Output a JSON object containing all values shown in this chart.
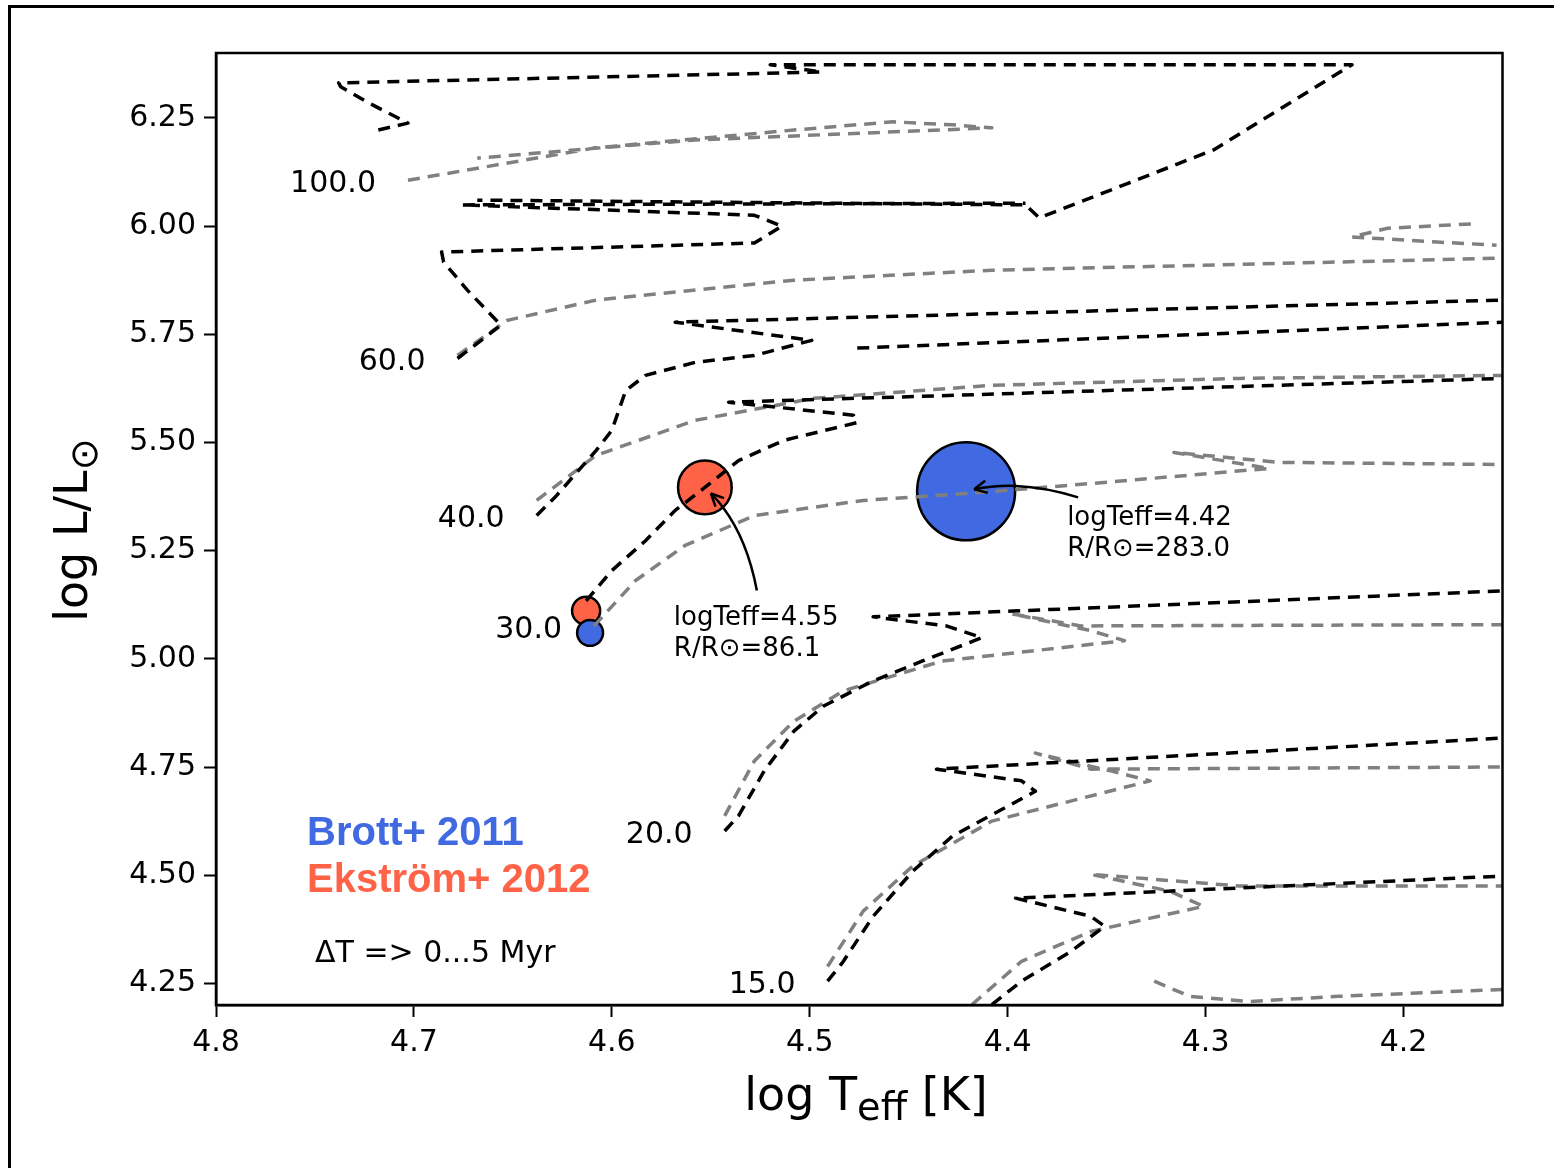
{
  "chart_data": {
    "type": "line",
    "xlabel": "log T$_{eff}$ [K]",
    "ylabel": "log L/L$_{⊙}$",
    "xlim": [
      4.8,
      4.15
    ],
    "xticks": [
      4.8,
      4.7,
      4.6,
      4.5,
      4.4,
      4.3,
      4.2
    ],
    "ylim": [
      4.2,
      6.4
    ],
    "yticks": [
      {
        "value": 4.25,
        "label": "4.25"
      },
      {
        "value": 4.5,
        "label": "4.50"
      },
      {
        "value": 4.75,
        "label": "4.75"
      },
      {
        "value": 5.0,
        "label": "5.00"
      },
      {
        "value": 5.25,
        "label": "5.25"
      },
      {
        "value": 5.5,
        "label": "5.50"
      },
      {
        "value": 5.75,
        "label": "5.75"
      },
      {
        "value": 6.0,
        "label": "6.00"
      },
      {
        "value": 6.25,
        "label": "6.25"
      }
    ],
    "grid": false,
    "legend": "bottom left",
    "line_style": "dashed",
    "series": [
      {
        "color": "#000000",
        "x": [
          4.718,
          4.703,
          4.723,
          4.737,
          4.738,
          4.494,
          4.52,
          4.226,
          4.296,
          4.384,
          4.391,
          4.668
        ],
        "values": [
          6.222,
          6.238,
          6.285,
          6.322,
          6.331,
          6.356,
          6.373,
          6.373,
          6.176,
          6.019,
          6.049,
          6.06
        ]
      },
      {
        "color": "#000000",
        "x": [
          4.678,
          4.656,
          4.673,
          4.685,
          4.686,
          4.528,
          4.514,
          4.528,
          4.676,
          4.391
        ],
        "values": [
          5.694,
          5.771,
          5.852,
          5.917,
          5.94,
          5.961,
          6.0,
          6.025,
          6.049,
          6.053
        ]
      },
      {
        "color": "#000000",
        "x": [
          4.638,
          4.628,
          4.608,
          4.6,
          4.593,
          4.583,
          4.558,
          4.528,
          4.499,
          4.568,
          4.15
        ],
        "values": [
          5.331,
          5.377,
          5.481,
          5.528,
          5.62,
          5.655,
          5.685,
          5.701,
          5.736,
          5.778,
          5.829
        ]
      },
      {
        "color": "#000000",
        "x": [
          4.476,
          4.15
        ],
        "values": [
          5.718,
          5.778
        ]
      },
      {
        "color": "#000000",
        "x": [
          4.613,
          4.6,
          4.583,
          4.568,
          4.553,
          4.536,
          4.513,
          4.476,
          4.478,
          4.541,
          4.15
        ],
        "values": [
          5.134,
          5.204,
          5.273,
          5.343,
          5.396,
          5.458,
          5.505,
          5.546,
          5.563,
          5.593,
          5.648
        ]
      },
      {
        "color": "#000000",
        "x": [
          4.543,
          4.536,
          4.523,
          4.508,
          4.493,
          4.468,
          4.443,
          4.413,
          4.431,
          4.468,
          4.15
        ],
        "values": [
          4.602,
          4.637,
          4.741,
          4.833,
          4.891,
          4.949,
          4.995,
          5.049,
          5.076,
          5.097,
          5.157
        ]
      },
      {
        "color": "#000000",
        "x": [
          4.491,
          4.483,
          4.468,
          4.448,
          4.428,
          4.386,
          4.393,
          4.436,
          4.15
        ],
        "values": [
          4.255,
          4.301,
          4.405,
          4.509,
          4.59,
          4.694,
          4.718,
          4.745,
          4.817
        ]
      },
      {
        "color": "#000000",
        "x": [
          4.408,
          4.393,
          4.368,
          4.351,
          4.358,
          4.396,
          4.15
        ],
        "values": [
          4.201,
          4.255,
          4.324,
          4.382,
          4.405,
          4.447,
          4.498
        ]
      },
      {
        "color": "#808080",
        "x": [
          4.703,
          4.608,
          4.508,
          4.458,
          4.428,
          4.408,
          4.558,
          4.668
        ],
        "values": [
          6.106,
          6.181,
          6.222,
          6.241,
          6.234,
          6.227,
          6.199,
          6.157
        ]
      },
      {
        "color": "#808080",
        "x": [
          4.678,
          4.653,
          4.608,
          4.508,
          4.408,
          4.15
        ],
        "values": [
          5.701,
          5.782,
          5.829,
          5.875,
          5.898,
          5.926
        ]
      },
      {
        "color": "#808080",
        "x": [
          4.166,
          4.208,
          4.226,
          4.183,
          4.153
        ],
        "values": [
          6.005,
          5.995,
          5.975,
          5.963,
          5.956
        ]
      },
      {
        "color": "#808080",
        "x": [
          4.638,
          4.608,
          4.558,
          4.498,
          4.408,
          4.283,
          4.15
        ],
        "values": [
          5.366,
          5.47,
          5.551,
          5.602,
          5.632,
          5.648,
          5.655
        ]
      },
      {
        "color": "#808080",
        "x": [
          4.609,
          4.588,
          4.563,
          4.528,
          4.473,
          4.421,
          4.358,
          4.268,
          4.316,
          4.263,
          4.15
        ],
        "values": [
          5.076,
          5.181,
          5.262,
          5.331,
          5.366,
          5.382,
          5.405,
          5.44,
          5.477,
          5.454,
          5.449
        ]
      },
      {
        "color": "#808080",
        "x": [
          4.543,
          4.528,
          4.508,
          4.483,
          4.433,
          4.341,
          4.358,
          4.398,
          4.363,
          4.15
        ],
        "values": [
          4.637,
          4.764,
          4.856,
          4.926,
          4.995,
          5.042,
          5.065,
          5.104,
          5.076,
          5.079
        ]
      },
      {
        "color": "#808080",
        "x": [
          4.491,
          4.473,
          4.448,
          4.408,
          4.328,
          4.348,
          4.386,
          4.358,
          4.15
        ],
        "values": [
          4.289,
          4.417,
          4.521,
          4.625,
          4.718,
          4.741,
          4.782,
          4.745,
          4.75
        ]
      },
      {
        "color": "#808080",
        "x": [
          4.418,
          4.393,
          4.358,
          4.301,
          4.318,
          4.358,
          4.283,
          4.15
        ],
        "values": [
          4.201,
          4.301,
          4.37,
          4.428,
          4.463,
          4.502,
          4.475,
          4.475
        ]
      },
      {
        "color": "#808080",
        "x": [
          4.326,
          4.308,
          4.278,
          4.233,
          4.15
        ],
        "values": [
          4.255,
          4.22,
          4.208,
          4.22,
          4.236
        ]
      },
      {
        "type": "bubble",
        "name": "Brott+ 2011",
        "color": "#4169e1",
        "x": [
          4.611,
          4.421
        ],
        "values": [
          5.06,
          5.387
        ],
        "sizes": [
          0.07,
          1
        ]
      },
      {
        "type": "bubble",
        "name": "Ekström+ 2012",
        "color": "#ff6347",
        "x": [
          4.613,
          4.553
        ],
        "values": [
          5.111,
          5.396
        ],
        "sizes": [
          0.082,
          0.3
        ]
      }
    ],
    "annotations": [
      {
        "text": "100.0",
        "x": 4.703,
        "y": 6.106
      },
      {
        "text": "60.0",
        "x": 4.678,
        "y": 5.694
      },
      {
        "text": "40.0",
        "x": 4.638,
        "y": 5.331
      },
      {
        "text": "30.0",
        "x": 4.609,
        "y": 5.076
      },
      {
        "text": "20.0",
        "x": 4.543,
        "y": 4.602
      },
      {
        "text": "15.0",
        "x": 4.491,
        "y": 4.255
      },
      {
        "text": "logTeff=4.55\nR/R⊙=86.1",
        "x": 4.553,
        "y": 5.396
      },
      {
        "text": "logTeff=4.42\nR/R⊙=283.0",
        "x": 4.421,
        "y": 5.387
      },
      "ΔT => 0...5 Myr"
    ]
  }
}
